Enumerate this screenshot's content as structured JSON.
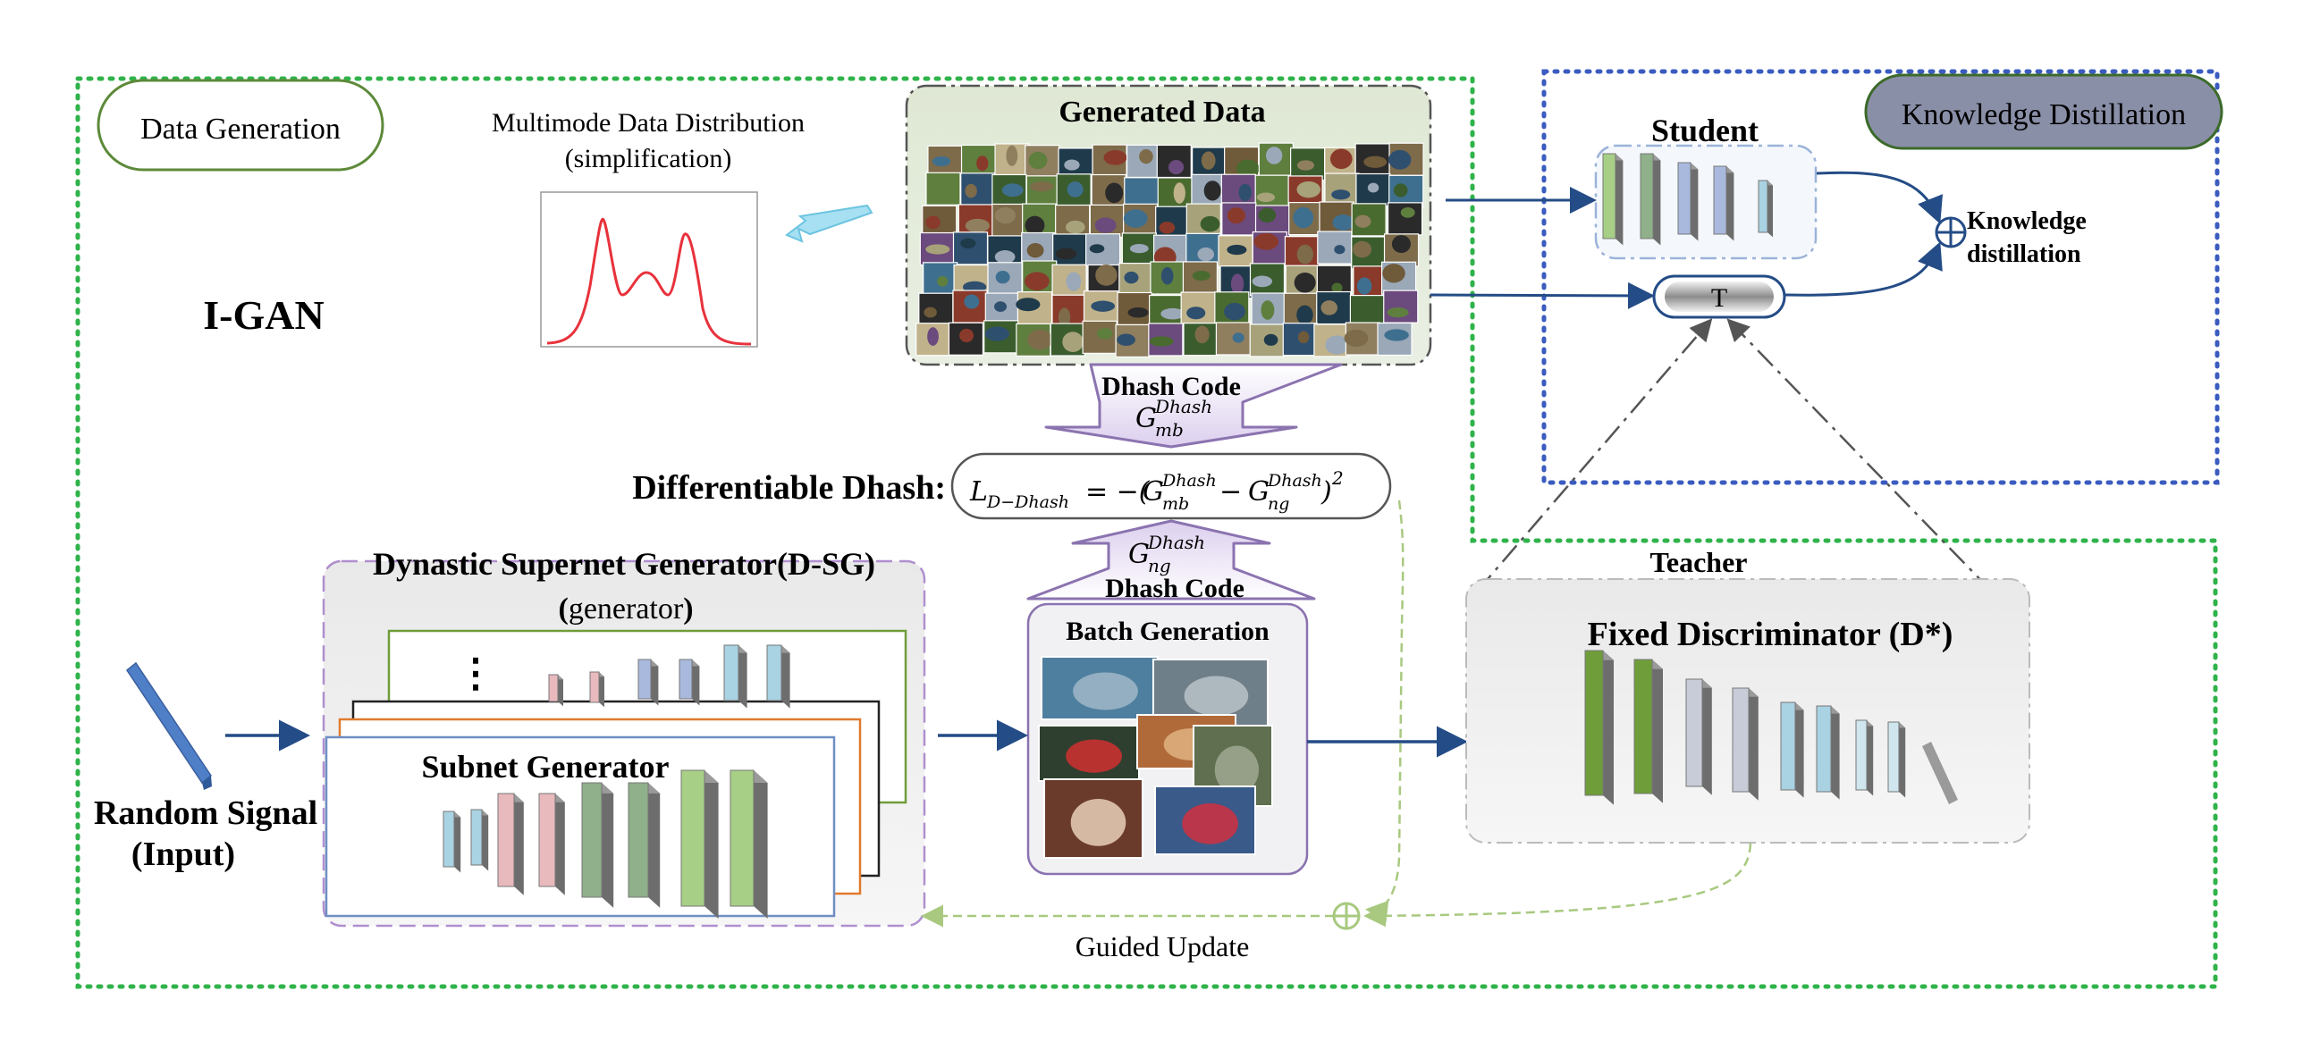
{
  "labels": {
    "data_generation": "Data Generation",
    "knowledge_distillation": "Knowledge Distillation",
    "multimode_title": "Multimode Data Distribution",
    "multimode_subtitle": "(simplification)",
    "igan": "I-GAN",
    "generated_data": "Generated Data",
    "student": "Student",
    "kd_output_line1": "Knowledge",
    "kd_output_line2": "distillation",
    "temperature": "T",
    "dhash_code_top": "Dhash Code",
    "g_mb_base": "G",
    "g_mb_sub": "mb",
    "g_sup": "Dhash",
    "differentiable_dhash": "Differentiable Dhash:",
    "loss_formula_L": "L",
    "loss_formula_L_sub": "D−Dhash",
    "loss_formula_rest_1": "= −(",
    "loss_formula_minus": "−",
    "loss_formula_close": ")",
    "loss_formula_pow": "2",
    "g_ng_sub": "ng",
    "dhash_code_bottom": "Dhash Code",
    "teacher": "Teacher",
    "dsg_title": "Dynastic Supernet Generator(D-SG)",
    "dsg_sub_open": "(",
    "dsg_sub_word": "generator",
    "dsg_sub_close": ")",
    "batch_generation": "Batch Generation",
    "fixed_discriminator": "Fixed Discriminator (D*)",
    "subnet_generator": "Subnet Generator",
    "random_signal_line1": "Random Signal",
    "random_signal_line2": "(Input)",
    "guided_update": "Guided Update",
    "dots": "⋮"
  },
  "colors": {
    "dotted_green": "#2fb34a",
    "dotted_blue": "#3a5bbf",
    "arrow_blue": "#244c86",
    "dashed_green": "#a8c97f",
    "purple": "#8b73b0",
    "layer_green": "#6f9d3a",
    "layer_light_green": "#a7cf86",
    "layer_blue": "#a9b9dd",
    "layer_light_blue": "#a9d2e2",
    "layer_pink": "#e8b9bd",
    "layer_sage": "#8fb08a",
    "curve_red": "#e8323c",
    "kd_pill": "#8a8fa8"
  },
  "icons": {
    "cyan_arrow": "arrow-left-icon",
    "plus_circle": "plus-circle-icon"
  }
}
